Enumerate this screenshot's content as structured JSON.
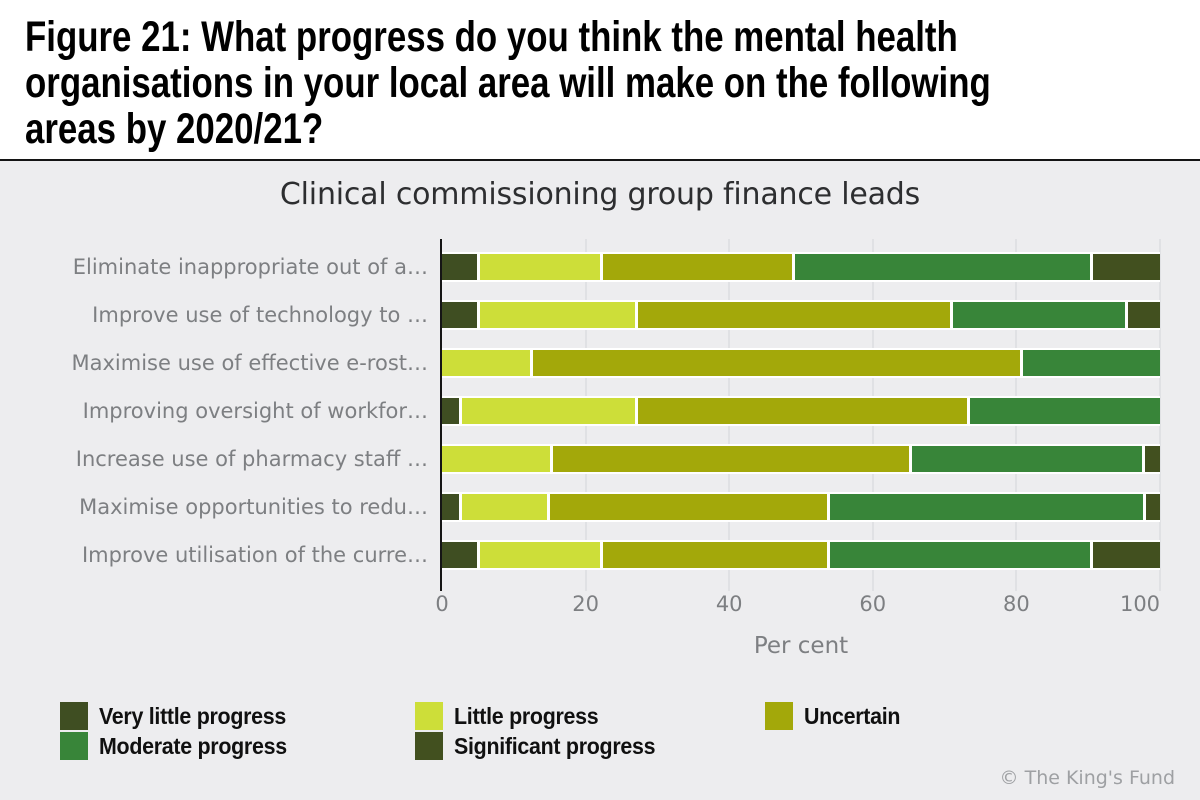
{
  "header": {
    "title_lines": [
      "Figure 21: What progress do you think the mental health",
      "organisations in your local area will make on the following",
      "areas by 2020/21?"
    ]
  },
  "chart_data": {
    "type": "bar",
    "orientation": "horizontal-stacked",
    "title": "Clinical commissioning group finance leads",
    "categories": [
      "Eliminate inappropriate out of a…",
      "Improve use of technology to …",
      "Maximise use of effective e-rost…",
      "Improving oversight of workfor…",
      "Increase use of pharmacy staff …",
      "Maximise opportunities to redu…",
      "Improve utilisation of the curre…"
    ],
    "series": [
      {
        "name": "Very little progress",
        "color": "#3f4e22",
        "values": [
          4.9,
          4.9,
          0,
          2.4,
          0,
          2.4,
          4.9
        ]
      },
      {
        "name": "Little progress",
        "color": "#cdde39",
        "values": [
          17.1,
          22.0,
          12.2,
          24.4,
          15.0,
          12.2,
          17.1
        ]
      },
      {
        "name": "Uncertain",
        "color": "#a3a80a",
        "values": [
          26.8,
          43.9,
          68.3,
          46.3,
          50.0,
          39.0,
          31.7
        ]
      },
      {
        "name": "Moderate progress",
        "color": "#388539",
        "values": [
          41.5,
          24.4,
          19.5,
          26.8,
          32.5,
          43.9,
          36.6
        ]
      },
      {
        "name": "Significant progress",
        "color": "#42501f",
        "values": [
          9.8,
          4.9,
          0,
          0,
          2.5,
          2.4,
          9.8
        ]
      }
    ],
    "xlabel": "Per cent",
    "xticks": [
      0,
      20,
      40,
      60,
      80,
      100
    ],
    "xlim": [
      0,
      100
    ],
    "grid": true,
    "legend_position": "bottom-left"
  },
  "footer": {
    "copyright": "© The King's Fund"
  },
  "colors": {
    "header_bg": "#ffffff",
    "chart_bg": "#ededef",
    "grid": "#e0e1e4",
    "axis": "#151515",
    "label_gray": "#7d7f82"
  }
}
